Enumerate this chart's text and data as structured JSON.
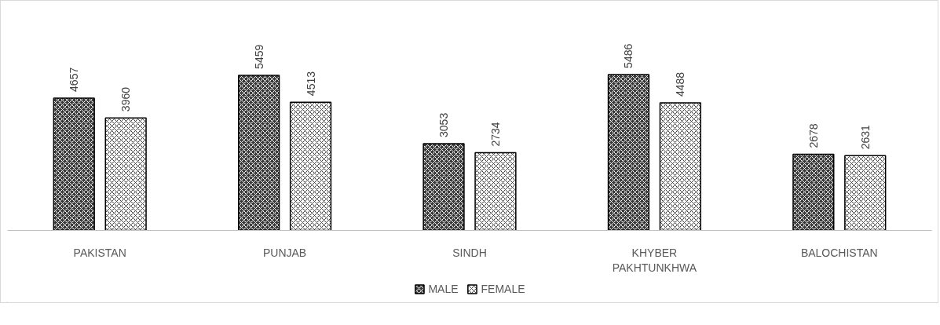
{
  "chart_data": {
    "type": "bar",
    "categories": [
      "PAKISTAN",
      "PUNJAB",
      "SINDH",
      "KHYBER PAKHTUNKHWA",
      "BALOCHISTAN"
    ],
    "series": [
      {
        "name": "MALE",
        "color": "#3a3a3a",
        "values": [
          4657,
          5459,
          3053,
          5486,
          2678
        ]
      },
      {
        "name": "FEMALE",
        "color": "#ffffff",
        "values": [
          3960,
          4513,
          2734,
          4488,
          2631
        ]
      }
    ],
    "data_labels": true,
    "legend": "bottom"
  }
}
